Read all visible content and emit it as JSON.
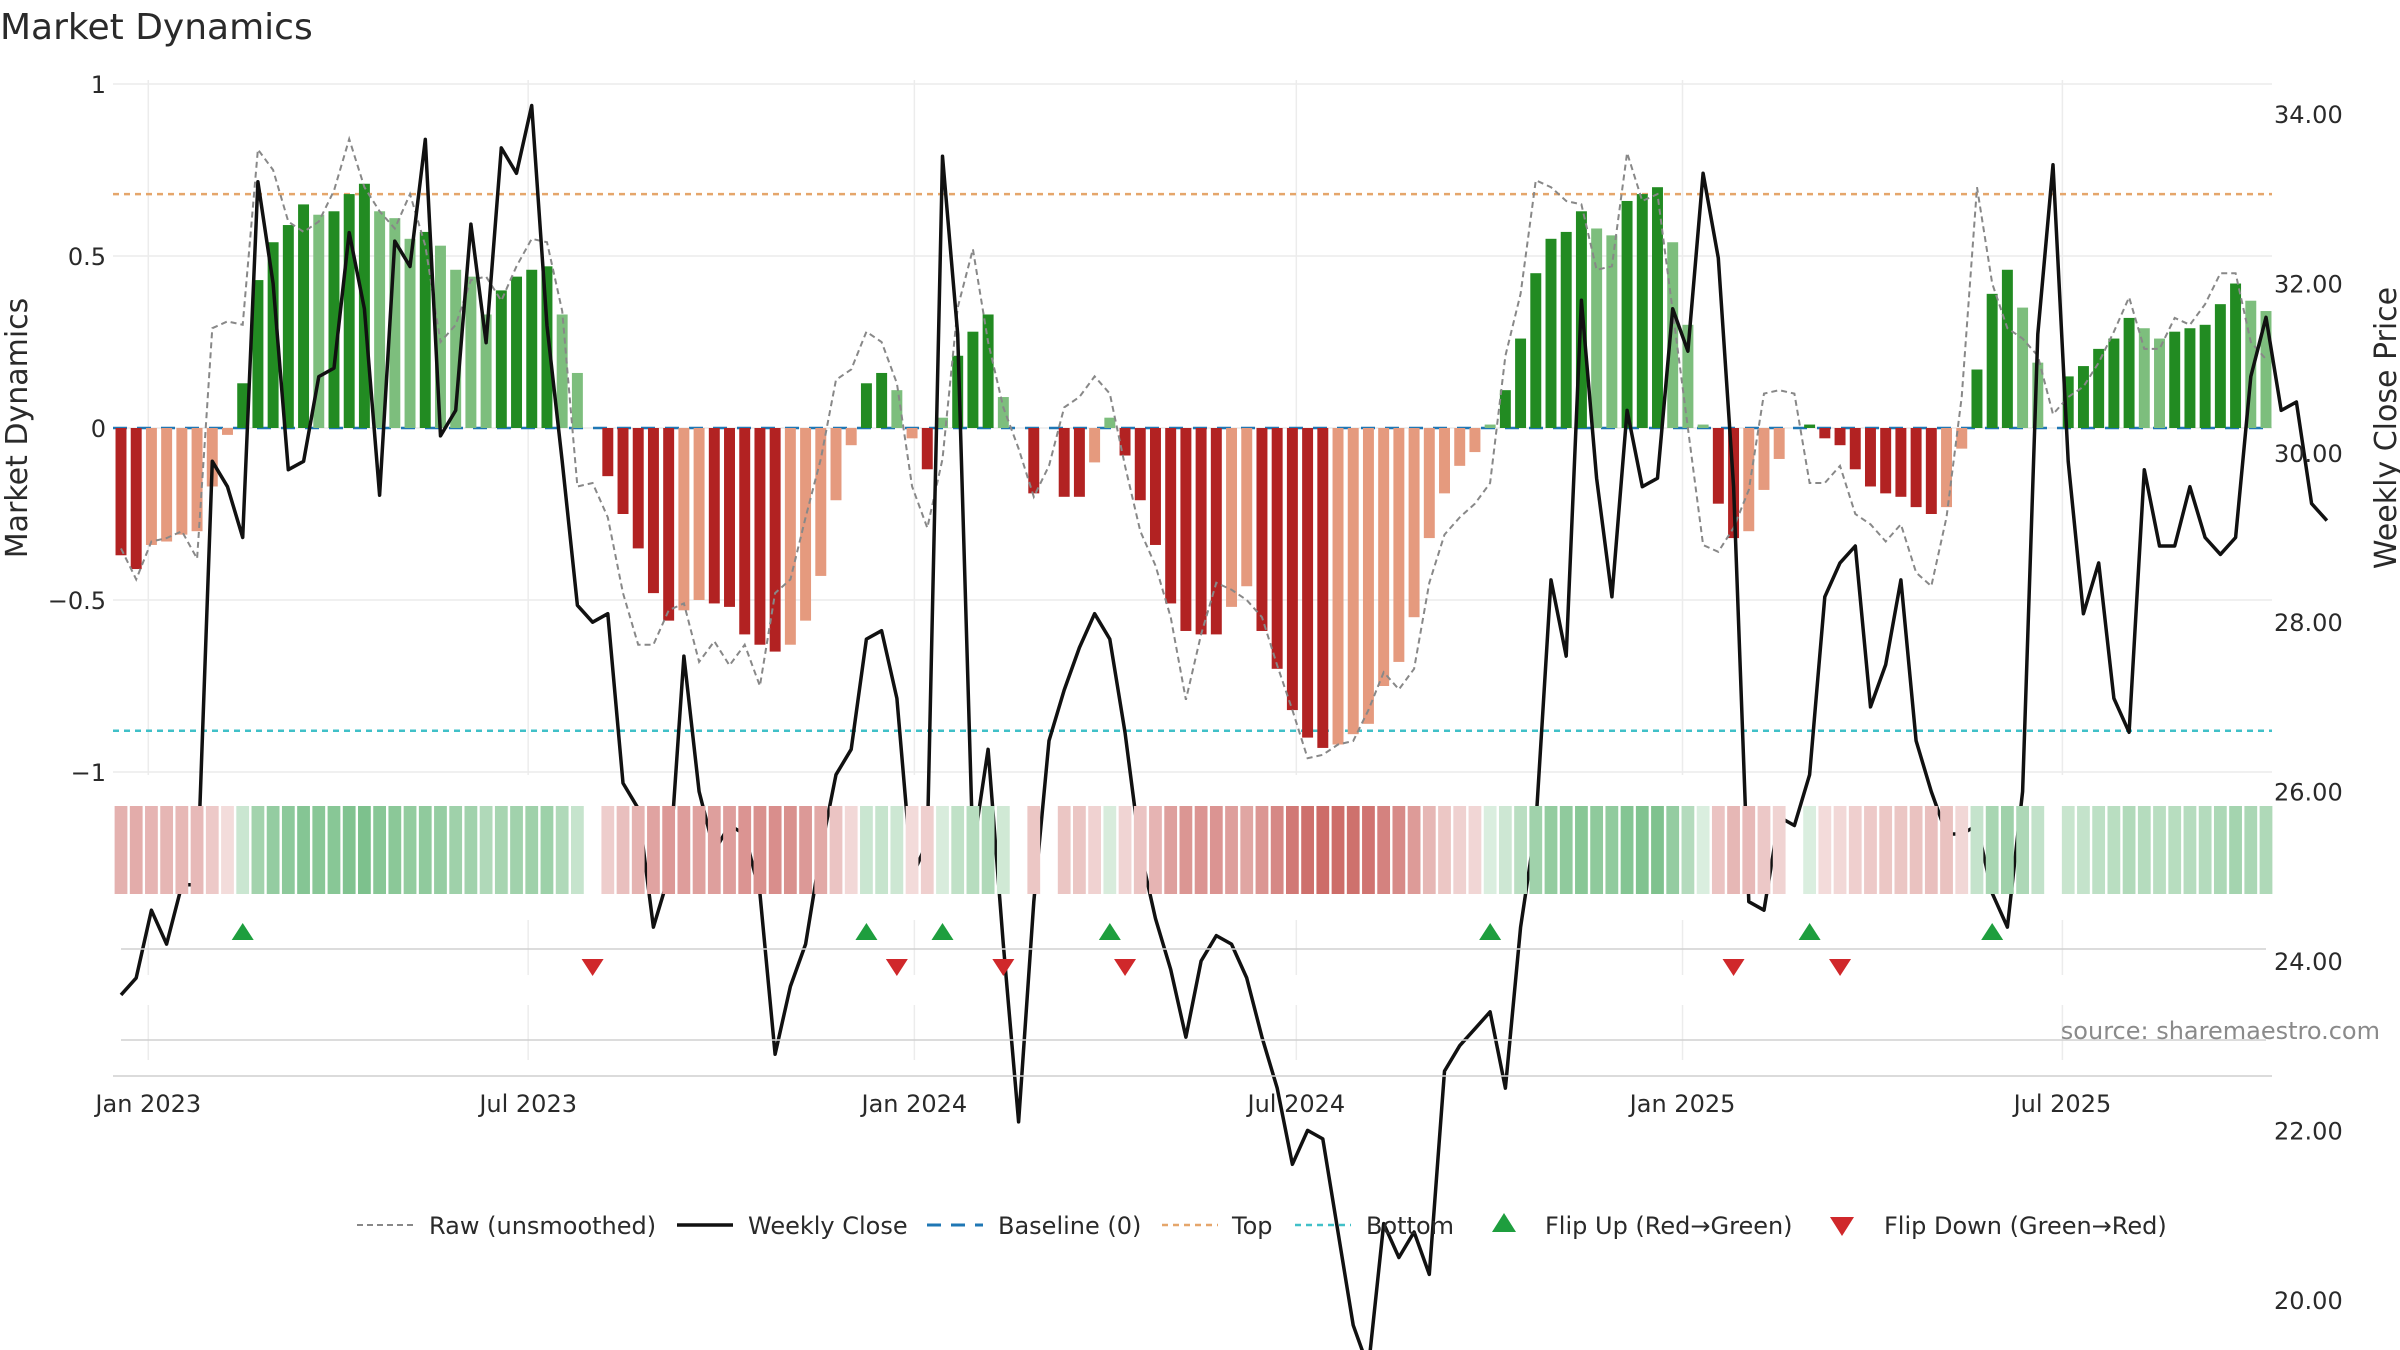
{
  "chart_data": {
    "type": "bar",
    "title": "Market Dynamics",
    "source": "source: sharemaestro.com",
    "y_left": {
      "label": "Market Dynamics",
      "range": [
        -1,
        1
      ],
      "ticks": [
        "1",
        "0.5",
        "0",
        "−0.5",
        "−1"
      ]
    },
    "y_right": {
      "label": "Weekly Close Price",
      "range": [
        18.5,
        34.8
      ],
      "ticks": [
        "34.00",
        "32.00",
        "30.00",
        "28.00",
        "26.00",
        "24.00",
        "22.00",
        "20.00"
      ]
    },
    "x_axis": {
      "start": "2022-12-19",
      "end": "2025-10-06",
      "ticks": [
        "Jan 2023",
        "Jul 2023",
        "Jan 2024",
        "Jul 2024",
        "Jan 2025",
        "Jul 2025"
      ]
    },
    "reference_lines": {
      "top": 0.68,
      "bottom": -0.88,
      "baseline": 0
    },
    "colors": {
      "green_strong": "#228b22",
      "green_light": "#7dbe7d",
      "red_strong": "#b22222",
      "red_light": "#e59a7e",
      "close": "#111111",
      "raw": "#888888",
      "baseline": "#1f77b4",
      "top": "#e5a66b",
      "bottom": "#40c0c8"
    },
    "series": [
      {
        "name": "Market Dynamics (bars)",
        "values": [
          -0.37,
          -0.41,
          -0.34,
          -0.33,
          -0.31,
          -0.3,
          -0.17,
          -0.02,
          0.13,
          0.43,
          0.54,
          0.59,
          0.65,
          0.62,
          0.63,
          0.68,
          0.71,
          0.63,
          0.61,
          0.55,
          0.57,
          0.53,
          0.46,
          0.44,
          0.33,
          0.4,
          0.44,
          0.46,
          0.47,
          0.33,
          0.16,
          0.0,
          -0.14,
          -0.25,
          -0.35,
          -0.48,
          -0.56,
          -0.53,
          -0.5,
          -0.51,
          -0.52,
          -0.6,
          -0.63,
          -0.65,
          -0.63,
          -0.56,
          -0.43,
          -0.21,
          -0.05,
          0.13,
          0.16,
          0.11,
          -0.03,
          -0.12,
          0.03,
          0.21,
          0.28,
          0.33,
          0.09,
          0.0,
          -0.19,
          0.0,
          -0.2,
          -0.2,
          -0.1,
          0.03,
          -0.08,
          -0.21,
          -0.34,
          -0.51,
          -0.59,
          -0.6,
          -0.6,
          -0.52,
          -0.46,
          -0.59,
          -0.7,
          -0.82,
          -0.9,
          -0.93,
          -0.92,
          -0.89,
          -0.86,
          -0.75,
          -0.68,
          -0.55,
          -0.32,
          -0.19,
          -0.11,
          -0.07,
          0.01,
          0.11,
          0.26,
          0.45,
          0.55,
          0.57,
          0.63,
          0.58,
          0.56,
          0.66,
          0.68,
          0.7,
          0.54,
          0.3,
          0.01,
          -0.22,
          -0.32,
          -0.3,
          -0.18,
          -0.09,
          0.0,
          0.01,
          -0.03,
          -0.05,
          -0.12,
          -0.17,
          -0.19,
          -0.2,
          -0.23,
          -0.25,
          -0.23,
          -0.06,
          0.17,
          0.39,
          0.46,
          0.35,
          0.19,
          0.0,
          0.15,
          0.18,
          0.23,
          0.26,
          0.32,
          0.29,
          0.26,
          0.28,
          0.29,
          0.3,
          0.36,
          0.42,
          0.37,
          0.34
        ]
      },
      {
        "name": "Raw (unsmoothed)",
        "values": [
          -0.35,
          -0.44,
          -0.33,
          -0.32,
          -0.3,
          -0.38,
          0.29,
          0.31,
          0.3,
          0.81,
          0.75,
          0.6,
          0.57,
          0.6,
          0.69,
          0.84,
          0.7,
          0.63,
          0.58,
          0.68,
          0.53,
          0.25,
          0.3,
          0.43,
          0.44,
          0.37,
          0.47,
          0.55,
          0.54,
          0.34,
          -0.17,
          -0.16,
          -0.26,
          -0.48,
          -0.63,
          -0.63,
          -0.53,
          -0.51,
          -0.68,
          -0.62,
          -0.69,
          -0.63,
          -0.75,
          -0.48,
          -0.44,
          -0.26,
          -0.09,
          0.14,
          0.17,
          0.28,
          0.25,
          0.13,
          -0.17,
          -0.29,
          -0.09,
          0.35,
          0.52,
          0.25,
          0.06,
          -0.06,
          -0.2,
          -0.11,
          0.06,
          0.09,
          0.15,
          0.1,
          -0.11,
          -0.3,
          -0.4,
          -0.55,
          -0.79,
          -0.6,
          -0.45,
          -0.47,
          -0.5,
          -0.55,
          -0.69,
          -0.82,
          -0.96,
          -0.95,
          -0.92,
          -0.91,
          -0.82,
          -0.71,
          -0.76,
          -0.7,
          -0.45,
          -0.31,
          -0.26,
          -0.22,
          -0.16,
          0.21,
          0.39,
          0.72,
          0.7,
          0.66,
          0.65,
          0.46,
          0.47,
          0.8,
          0.66,
          0.68,
          0.34,
          0.0,
          -0.34,
          -0.36,
          -0.29,
          -0.18,
          0.1,
          0.11,
          0.1,
          -0.16,
          -0.16,
          -0.11,
          -0.25,
          -0.28,
          -0.33,
          -0.28,
          -0.42,
          -0.46,
          -0.26,
          0.09,
          0.7,
          0.42,
          0.29,
          0.26,
          0.21,
          0.04,
          0.09,
          0.12,
          0.19,
          0.28,
          0.38,
          0.23,
          0.23,
          0.32,
          0.3,
          0.36,
          0.45,
          0.45,
          0.25,
          0.2
        ]
      },
      {
        "name": "Weekly Close",
        "values": [
          23.6,
          23.8,
          24.6,
          24.2,
          24.9,
          24.9,
          29.9,
          29.6,
          29.0,
          33.2,
          32.0,
          29.8,
          29.9,
          30.9,
          31.0,
          32.6,
          31.7,
          29.5,
          32.5,
          32.2,
          33.7,
          30.2,
          30.5,
          32.7,
          31.3,
          33.6,
          33.3,
          34.1,
          31.5,
          29.9,
          28.2,
          28.0,
          28.1,
          26.1,
          25.8,
          24.4,
          25.0,
          27.6,
          26.0,
          25.3,
          25.6,
          25.5,
          24.8,
          22.9,
          23.7,
          24.2,
          25.3,
          26.2,
          26.5,
          27.8,
          27.9,
          27.1,
          25.0,
          25.4,
          33.5,
          31.4,
          25.3,
          26.5,
          24.2,
          22.1,
          24.7,
          26.6,
          27.2,
          27.7,
          28.1,
          27.8,
          26.7,
          25.3,
          24.5,
          23.9,
          23.1,
          24.0,
          24.3,
          24.2,
          23.8,
          23.1,
          22.5,
          21.6,
          22.0,
          21.9,
          20.8,
          19.7,
          19.2,
          20.9,
          20.5,
          20.8,
          20.3,
          22.7,
          23.0,
          23.2,
          23.4,
          22.5,
          24.4,
          25.6,
          28.5,
          27.6,
          31.8,
          29.7,
          28.3,
          30.5,
          29.6,
          29.7,
          31.7,
          31.2,
          33.3,
          32.3,
          29.6,
          24.7,
          24.6,
          25.7,
          25.6,
          26.2,
          28.3,
          28.7,
          28.9,
          27.0,
          27.5,
          28.5,
          26.6,
          26.0,
          25.5,
          25.5,
          25.6,
          24.8,
          24.4,
          26.0,
          31.4,
          33.4,
          29.9,
          28.1,
          28.7,
          27.1,
          26.7,
          29.8,
          28.9,
          28.9,
          29.6,
          29.0,
          28.8,
          29.0,
          30.9,
          31.6,
          30.5,
          30.6,
          29.4,
          29.2
        ]
      }
    ],
    "legend": [
      "Raw (unsmoothed)",
      "Weekly Close",
      "Baseline (0)",
      "Top",
      "Bottom",
      "Flip Up (Red→Green)",
      "Flip Down (Green→Red)"
    ],
    "flips_up": [
      8,
      49,
      54,
      65,
      90,
      111,
      123
    ],
    "flips_down": [
      31,
      51,
      58,
      66,
      106,
      113
    ]
  }
}
